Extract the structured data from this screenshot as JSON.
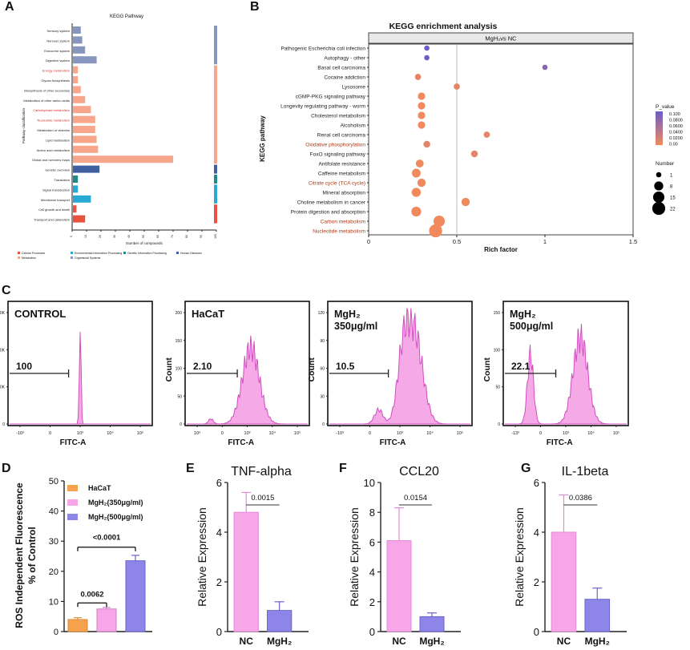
{
  "panels": {
    "A": "A",
    "B": "B",
    "C": "C",
    "D": "D",
    "E": "E",
    "F": "F",
    "G": "G"
  },
  "colors": {
    "pink": "#f28cde",
    "pink_line": "#d04fbf",
    "salmon": "#f7a68c",
    "navy": "#3f5fa0",
    "slate": "#8796bf",
    "teal": "#1e8a8a",
    "cyan": "#27a9d4",
    "red": "#e8523f",
    "orange": "#f6a24f",
    "purple": "#8d86e8",
    "bar_pink": "#f7a6e8",
    "dot_high": "#6b5cc8",
    "dot_low": "#f08a5d"
  },
  "chart_data": [
    {
      "id": "A",
      "type": "bar",
      "orientation": "horizontal",
      "title": "KEGG Pathway",
      "xlabel": "Number of compounds",
      "ylabel": "Pathway classification",
      "xlim": [
        0,
        100
      ],
      "xticks": [
        "0",
        "10",
        "20",
        "30",
        "40",
        "50",
        "60",
        "70",
        "80",
        "90",
        "100"
      ],
      "categories": [
        {
          "label": "Sensory system",
          "value": 6,
          "group": "Organismal Systems",
          "red": false
        },
        {
          "label": "Nervous system",
          "value": 7,
          "group": "Organismal Systems",
          "red": false
        },
        {
          "label": "Endocrine system",
          "value": 9,
          "group": "Organismal Systems",
          "red": false
        },
        {
          "label": "Digestive system",
          "value": 17,
          "group": "Organismal Systems",
          "red": false
        },
        {
          "label": "Energy metabolism",
          "value": 4,
          "group": "Metabolism",
          "red": true
        },
        {
          "label": "Glycan biosynthesis",
          "value": 4,
          "group": "Metabolism",
          "red": false
        },
        {
          "label": "Biosynthesis of other secondary",
          "value": 6,
          "group": "Metabolism",
          "red": false
        },
        {
          "label": "Metabolism of other amino acids",
          "value": 9,
          "group": "Metabolism",
          "red": false
        },
        {
          "label": "Carbohydrate metabolism",
          "value": 13,
          "group": "Metabolism",
          "red": true
        },
        {
          "label": "Nucleotide metabolism",
          "value": 16,
          "group": "Metabolism",
          "red": true
        },
        {
          "label": "Metabolism of vitamins",
          "value": 16,
          "group": "Metabolism",
          "red": false
        },
        {
          "label": "Lipid metabolism",
          "value": 17,
          "group": "Metabolism",
          "red": false
        },
        {
          "label": "Amino acid metabolism",
          "value": 18,
          "group": "Metabolism",
          "red": false
        },
        {
          "label": "Global and overview maps",
          "value": 70,
          "group": "Metabolism",
          "red": false
        },
        {
          "label": "Genetic overview",
          "value": 19,
          "group": "Human Diseases",
          "red": false
        },
        {
          "label": "Translation",
          "value": 4,
          "group": "Genetic Information Processing",
          "red": false
        },
        {
          "label": "Signal transduction",
          "value": 4,
          "group": "Environmental Information Processing",
          "red": false
        },
        {
          "label": "Membrane transport",
          "value": 13,
          "group": "Environmental Information Processing",
          "red": false
        },
        {
          "label": "Cell growth and death",
          "value": 3,
          "group": "Cellular Processes",
          "red": false
        },
        {
          "label": "Transport and catabolism",
          "value": 9,
          "group": "Cellular Processes",
          "red": false
        }
      ],
      "legend": [
        {
          "label": "Cellular Processes",
          "color": "#e8523f"
        },
        {
          "label": "Environmental Information Processing",
          "color": "#27a9d4"
        },
        {
          "label": "Genetic Information Processing",
          "color": "#1e8a8a"
        },
        {
          "label": "Human Diseases",
          "color": "#3f5fa0"
        },
        {
          "label": "Metabolism",
          "color": "#f7a68c"
        },
        {
          "label": "Organismal Systems",
          "color": "#8796bf"
        }
      ]
    },
    {
      "id": "B",
      "type": "scatter",
      "title": "KEGG enrichment analysis",
      "facet": "MgH₂vs NC",
      "xlabel": "Rich factor",
      "ylabel": "KEGG pathway",
      "xlim": [
        0,
        1.5
      ],
      "xticks": [
        "0",
        "0.5",
        "1",
        "1.5"
      ],
      "points": [
        {
          "label": "Pathogenic Escherichia coli infection",
          "x": 0.33,
          "p": 0.1,
          "n": 1,
          "red": false
        },
        {
          "label": "Autophagy - other",
          "x": 0.33,
          "p": 0.1,
          "n": 1,
          "red": false
        },
        {
          "label": "Basal cell carcinoma",
          "x": 1.0,
          "p": 0.08,
          "n": 1,
          "red": false
        },
        {
          "label": "Cocaine addiction",
          "x": 0.28,
          "p": 0.01,
          "n": 2,
          "red": false
        },
        {
          "label": "Lysosome",
          "x": 0.5,
          "p": 0.01,
          "n": 2,
          "red": false
        },
        {
          "label": "cGMP-PKG signaling pathway",
          "x": 0.3,
          "p": 0.0,
          "n": 4,
          "red": false
        },
        {
          "label": "Longevity regulating pathway - worm",
          "x": 0.3,
          "p": 0.0,
          "n": 4,
          "red": false
        },
        {
          "label": "Cholesterol metabolism",
          "x": 0.3,
          "p": 0.0,
          "n": 4,
          "red": false
        },
        {
          "label": "Alcoholism",
          "x": 0.3,
          "p": 0.0,
          "n": 4,
          "red": false
        },
        {
          "label": "Renal cell carcinoma",
          "x": 0.67,
          "p": 0.01,
          "n": 2,
          "red": false
        },
        {
          "label": "Oxidative phosphorylation",
          "x": 0.33,
          "p": 0.01,
          "n": 3,
          "red": true
        },
        {
          "label": "FoxO signaling pathway",
          "x": 0.6,
          "p": 0.01,
          "n": 3,
          "red": false
        },
        {
          "label": "Antifolate resistance",
          "x": 0.29,
          "p": 0.0,
          "n": 5,
          "red": false
        },
        {
          "label": "Caffeine metabolism",
          "x": 0.27,
          "p": 0.0,
          "n": 7,
          "red": false
        },
        {
          "label": "Citrate cycle (TCA cycle)",
          "x": 0.3,
          "p": 0.0,
          "n": 6,
          "red": true
        },
        {
          "label": "Mineral absorption",
          "x": 0.27,
          "p": 0.0,
          "n": 8,
          "red": false
        },
        {
          "label": "Choline metabolism in cancer",
          "x": 0.55,
          "p": 0.0,
          "n": 6,
          "red": false
        },
        {
          "label": "Protein digestion and absorption",
          "x": 0.27,
          "p": 0.0,
          "n": 10,
          "red": false
        },
        {
          "label": "Carbon metabolism",
          "x": 0.4,
          "p": 0.0,
          "n": 15,
          "red": true
        },
        {
          "label": "Nucleotide metabolism",
          "x": 0.38,
          "p": 0.0,
          "n": 22,
          "red": true
        }
      ],
      "colorbar": {
        "title": "P_value",
        "ticks": [
          "0.100",
          "0.0800",
          "0.0600",
          "0.0400",
          "0.0200",
          "0.00"
        ]
      },
      "sizelegend": {
        "title": "Number",
        "items": [
          "1",
          "8",
          "15",
          "22"
        ]
      }
    },
    {
      "id": "C",
      "type": "histogram",
      "plots": [
        {
          "title": "CONTROL",
          "sub": "",
          "gate": "100",
          "xlabel": "FITC-A",
          "ylabel": "Count",
          "yticks": [
            "3.0K",
            "2.0K",
            "1.0K",
            "0"
          ],
          "xticks": [
            "-10³",
            "0",
            "10³",
            "10⁴",
            "10⁵"
          ],
          "peaks": [
            {
              "x": 0.5,
              "h": 0.97,
              "w": 0.006
            }
          ]
        },
        {
          "title": "HaCaT",
          "sub": "",
          "gate": "2.10",
          "xlabel": "FITC-A",
          "ylabel": "Count",
          "yticks": [
            "200",
            "150",
            "100",
            "50",
            "0"
          ],
          "xticks": [
            "10³",
            "0",
            "10³",
            "10⁴",
            "10⁵"
          ],
          "peaks": [
            {
              "x": 0.53,
              "h": 0.75,
              "w": 0.07
            },
            {
              "x": 0.2,
              "h": 0.05,
              "w": 0.02
            }
          ]
        },
        {
          "title": "MgH₂",
          "sub": "350μg/ml",
          "gate": "10.5",
          "xlabel": "FITC-A",
          "ylabel": "Count",
          "yticks": [
            "120",
            "90",
            "60",
            "30",
            "0"
          ],
          "xticks": [
            "-10³",
            "0",
            "10³",
            "10⁴",
            "10⁵"
          ],
          "peaks": [
            {
              "x": 0.6,
              "h": 0.9,
              "w": 0.06
            },
            {
              "x": 0.52,
              "h": 0.5,
              "w": 0.04
            },
            {
              "x": 0.35,
              "h": 0.14,
              "w": 0.03
            }
          ]
        },
        {
          "title": "MgH₂",
          "sub": "500μg/ml",
          "gate": "22.1",
          "xlabel": "FITC-A",
          "ylabel": "Count",
          "yticks": [
            "150",
            "100",
            "50",
            "0"
          ],
          "xticks": [
            "-13³",
            "0",
            "10³",
            "10⁴",
            "10⁵"
          ],
          "peaks": [
            {
              "x": 0.21,
              "h": 0.68,
              "w": 0.025
            },
            {
              "x": 0.62,
              "h": 0.85,
              "w": 0.06
            }
          ]
        }
      ]
    },
    {
      "id": "D",
      "type": "bar",
      "ylabel": "ROS Independent Fluorescence",
      "ylabel2": "% of Control",
      "ylim": [
        0,
        50
      ],
      "yticks": [
        "0",
        "10",
        "20",
        "30",
        "40",
        "50"
      ],
      "categories": [
        "HaCaT",
        "MgH₂(350μg/ml)",
        "MgH₂(500μg/ml)"
      ],
      "values": [
        4,
        7.5,
        23.5
      ],
      "errors": [
        0.6,
        0.5,
        1.8
      ],
      "legend": [
        "HaCaT",
        "MgH₂(350μg/ml)",
        "MgH₂(500μg/ml)"
      ],
      "annotations": [
        "0.0062",
        "<0.0001"
      ]
    },
    {
      "id": "E",
      "type": "bar",
      "title": "TNF-alpha",
      "ylabel": "Relative Expression",
      "ylim": [
        0,
        6
      ],
      "yticks": [
        "0",
        "2",
        "4",
        "6"
      ],
      "categories": [
        "NC",
        "MgH₂"
      ],
      "values": [
        4.8,
        0.85
      ],
      "errors": [
        0.8,
        0.35
      ],
      "pvalue": "0.0015"
    },
    {
      "id": "F",
      "type": "bar",
      "title": "CCL20",
      "ylabel": "Relative Expression",
      "ylim": [
        0,
        10
      ],
      "yticks": [
        "0",
        "2",
        "4",
        "6",
        "8",
        "10"
      ],
      "categories": [
        "NC",
        "MgH₂"
      ],
      "values": [
        6.1,
        1.0
      ],
      "errors": [
        2.2,
        0.25
      ],
      "pvalue": "0.0154"
    },
    {
      "id": "G",
      "type": "bar",
      "title": "IL-1beta",
      "ylabel": "Relative Expression",
      "ylim": [
        0,
        6
      ],
      "yticks": [
        "0",
        "2",
        "4",
        "6"
      ],
      "categories": [
        "NC",
        "MgH₂"
      ],
      "values": [
        4.0,
        1.3
      ],
      "errors": [
        1.5,
        0.45
      ],
      "pvalue": "0.0386"
    }
  ]
}
